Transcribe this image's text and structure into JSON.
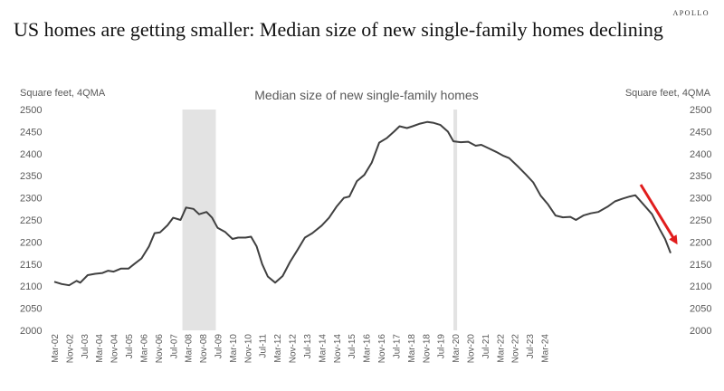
{
  "brand": "APOLLO",
  "headline": "US homes are getting smaller: Median size of new single-family homes declining",
  "chart_data": {
    "type": "line",
    "title": "Median size of new single-family homes",
    "ylabel_left": "Square feet, 4QMA",
    "ylabel_right": "Square feet, 4QMA",
    "ylim": [
      2000,
      2500
    ],
    "yticks": [
      2000,
      2050,
      2100,
      2150,
      2200,
      2250,
      2300,
      2350,
      2400,
      2450,
      2500
    ],
    "xticklabels": [
      "Mar-02",
      "Nov-02",
      "Jul-03",
      "Mar-04",
      "Nov-04",
      "Jul-05",
      "Mar-06",
      "Nov-06",
      "Jul-07",
      "Mar-08",
      "Nov-08",
      "Jul-09",
      "Mar-10",
      "Nov-10",
      "Jul-11",
      "Mar-12",
      "Nov-12",
      "Jul-13",
      "Mar-14",
      "Nov-14",
      "Jul-15",
      "Mar-16",
      "Nov-16",
      "Jul-17",
      "Mar-18",
      "Nov-18",
      "Jul-19",
      "Mar-20",
      "Nov-20",
      "Jul-21",
      "Mar-22",
      "Nov-22",
      "Jul-23",
      "Mar-24"
    ],
    "recessions": [
      {
        "start": "2007-12",
        "end": "2009-06"
      },
      {
        "start": "2020-02",
        "end": "2020-04"
      }
    ],
    "series": [
      {
        "name": "",
        "color": "#404040",
        "points": [
          [
            "2002-03",
            2110
          ],
          [
            "2002-07",
            2105
          ],
          [
            "2002-11",
            2102
          ],
          [
            "2003-03",
            2112
          ],
          [
            "2003-05",
            2108
          ],
          [
            "2003-09",
            2125
          ],
          [
            "2004-01",
            2128
          ],
          [
            "2004-05",
            2130
          ],
          [
            "2004-08",
            2135
          ],
          [
            "2004-11",
            2133
          ],
          [
            "2005-03",
            2140
          ],
          [
            "2005-07",
            2140
          ],
          [
            "2005-10",
            2150
          ],
          [
            "2006-02",
            2163
          ],
          [
            "2006-06",
            2190
          ],
          [
            "2006-09",
            2220
          ],
          [
            "2006-12",
            2222
          ],
          [
            "2007-04",
            2238
          ],
          [
            "2007-07",
            2255
          ],
          [
            "2007-11",
            2250
          ],
          [
            "2008-02",
            2278
          ],
          [
            "2008-06",
            2275
          ],
          [
            "2008-09",
            2263
          ],
          [
            "2009-01",
            2268
          ],
          [
            "2009-04",
            2255
          ],
          [
            "2009-07",
            2232
          ],
          [
            "2009-11",
            2223
          ],
          [
            "2010-03",
            2207
          ],
          [
            "2010-06",
            2210
          ],
          [
            "2010-10",
            2210
          ],
          [
            "2011-01",
            2212
          ],
          [
            "2011-04",
            2190
          ],
          [
            "2011-07",
            2150
          ],
          [
            "2011-10",
            2122
          ],
          [
            "2012-02",
            2108
          ],
          [
            "2012-06",
            2123
          ],
          [
            "2012-10",
            2155
          ],
          [
            "2013-02",
            2182
          ],
          [
            "2013-06",
            2210
          ],
          [
            "2013-10",
            2220
          ],
          [
            "2014-03",
            2237
          ],
          [
            "2014-07",
            2255
          ],
          [
            "2014-11",
            2280
          ],
          [
            "2015-03",
            2300
          ],
          [
            "2015-06",
            2303
          ],
          [
            "2015-10",
            2338
          ],
          [
            "2016-02",
            2352
          ],
          [
            "2016-06",
            2380
          ],
          [
            "2016-10",
            2425
          ],
          [
            "2017-02",
            2435
          ],
          [
            "2017-06",
            2450
          ],
          [
            "2017-09",
            2462
          ],
          [
            "2018-01",
            2458
          ],
          [
            "2018-04",
            2462
          ],
          [
            "2018-08",
            2468
          ],
          [
            "2018-12",
            2472
          ],
          [
            "2019-03",
            2470
          ],
          [
            "2019-07",
            2465
          ],
          [
            "2019-11",
            2450
          ],
          [
            "2020-02",
            2428
          ],
          [
            "2020-06",
            2426
          ],
          [
            "2020-10",
            2427
          ],
          [
            "2021-02",
            2418
          ],
          [
            "2021-05",
            2420
          ],
          [
            "2021-09",
            2412
          ],
          [
            "2022-01",
            2404
          ],
          [
            "2022-05",
            2395
          ],
          [
            "2022-08",
            2390
          ],
          [
            "2023-01",
            2370
          ],
          [
            "2023-05",
            2353
          ],
          [
            "2023-09",
            2335
          ],
          [
            "2024-01",
            2305
          ],
          [
            "2024-05",
            2285
          ],
          [
            "2024-09",
            2260
          ],
          [
            "2025-01",
            2256
          ],
          [
            "2025-05",
            2257
          ],
          [
            "2025-08",
            2250
          ],
          [
            "2025-12",
            2260
          ],
          [
            "2026-04",
            2265
          ],
          [
            "2026-08",
            2268
          ],
          [
            "2027-01",
            2280
          ],
          [
            "2027-05",
            2292
          ],
          [
            "2027-09",
            2298
          ],
          [
            "2028-01",
            2303
          ],
          [
            "2028-04",
            2306
          ],
          [
            "2028-08",
            2287
          ],
          [
            "2029-01",
            2263
          ],
          [
            "2029-05",
            2230
          ],
          [
            "2029-08",
            2207
          ],
          [
            "2029-11",
            2175
          ]
        ]
      }
    ],
    "annotation": {
      "type": "arrow",
      "color": "#e11d1d",
      "description": "downward trend"
    }
  }
}
